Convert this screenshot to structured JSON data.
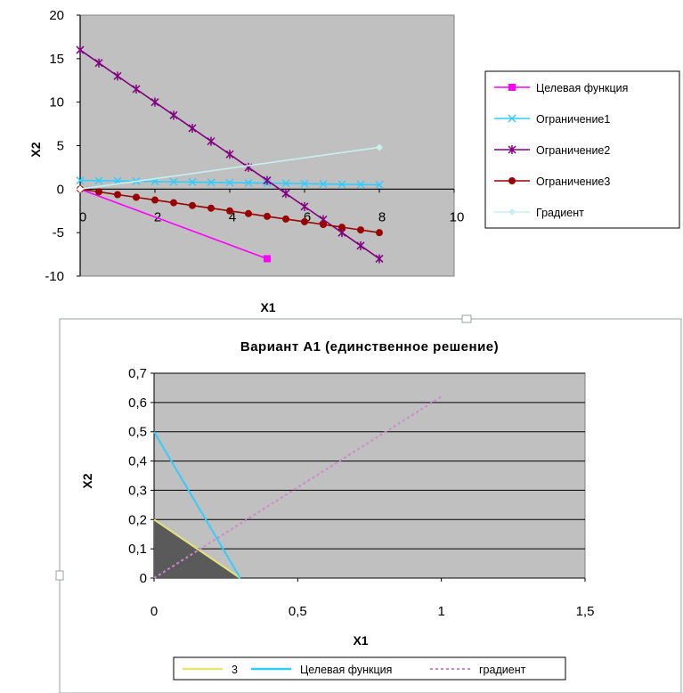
{
  "chart_data": [
    {
      "type": "line",
      "title": "",
      "xlabel": "X1",
      "ylabel": "X2",
      "xlim": [
        0,
        10
      ],
      "ylim": [
        -10,
        20
      ],
      "x_ticks": [
        "0",
        "2",
        "4",
        "6",
        "8",
        "10"
      ],
      "y_ticks": [
        "-10",
        "-5",
        "0",
        "5",
        "10",
        "15",
        "20"
      ],
      "legend": "right",
      "series": [
        {
          "name": "Целевая функция",
          "color": "#ff00ff",
          "marker": "square",
          "x": [
            0,
            5
          ],
          "y": [
            0,
            -8
          ],
          "markers_at": [
            1
          ]
        },
        {
          "name": "Ограничение1",
          "color": "#33ccff",
          "marker": "x",
          "x": [
            0,
            0.5,
            1,
            1.5,
            2,
            2.5,
            3,
            3.5,
            4,
            4.5,
            5,
            5.5,
            6,
            6.5,
            7,
            7.5,
            8
          ],
          "y": [
            1.0,
            0.97,
            0.94,
            0.91,
            0.88,
            0.84,
            0.81,
            0.78,
            0.75,
            0.72,
            0.69,
            0.66,
            0.63,
            0.59,
            0.56,
            0.53,
            0.5
          ]
        },
        {
          "name": "Ограничение2",
          "color": "#800080",
          "marker": "asterisk",
          "x": [
            0,
            0.5,
            1,
            1.5,
            2,
            2.5,
            3,
            3.5,
            4,
            4.5,
            5,
            5.5,
            6,
            6.5,
            7,
            7.5,
            8
          ],
          "y": [
            16,
            14.5,
            13,
            11.5,
            10,
            8.5,
            7,
            5.5,
            4,
            2.5,
            1,
            -0.5,
            -2,
            -3.5,
            -5,
            -6.5,
            -8
          ]
        },
        {
          "name": "Ограничение3",
          "color": "#990000",
          "marker": "circle",
          "x": [
            0,
            0.5,
            1,
            1.5,
            2,
            2.5,
            3,
            3.5,
            4,
            4.5,
            5,
            5.5,
            6,
            6.5,
            7,
            7.5,
            8
          ],
          "y": [
            0,
            -0.31,
            -0.63,
            -0.94,
            -1.25,
            -1.56,
            -1.88,
            -2.19,
            -2.5,
            -2.81,
            -3.13,
            -3.44,
            -3.75,
            -4.06,
            -4.38,
            -4.69,
            -5
          ]
        },
        {
          "name": "Градиент",
          "color": "#c8f0f0",
          "marker": "diamond",
          "x": [
            0,
            8
          ],
          "y": [
            0,
            4.8
          ],
          "markers_at": [
            0,
            1
          ]
        }
      ]
    },
    {
      "type": "area",
      "title": "Вариант А1 (единственное решение)",
      "xlabel": "X1",
      "ylabel": "X2",
      "xlim": [
        0,
        1.5
      ],
      "ylim": [
        0,
        0.7
      ],
      "x_ticks": [
        "0",
        "0,5",
        "1",
        "1,5"
      ],
      "y_ticks": [
        "0",
        "0,1",
        "0,2",
        "0,3",
        "0,4",
        "0,5",
        "0,6",
        "0,7"
      ],
      "grid": true,
      "legend": "bottom",
      "feasible_region": {
        "x": [
          0,
          0,
          0.3
        ],
        "y": [
          0,
          0.2,
          0
        ],
        "color": "#5a5a5a"
      },
      "series": [
        {
          "name": "3",
          "color": "#e6e673",
          "style": "solid",
          "x": [
            0,
            0.3
          ],
          "y": [
            0.2,
            0
          ]
        },
        {
          "name": "Целевая функция",
          "color": "#33ccff",
          "style": "solid",
          "x": [
            0,
            0.3
          ],
          "y": [
            0.5,
            0
          ]
        },
        {
          "name": "градиент",
          "color": "#cc88cc",
          "style": "dotted",
          "x": [
            0,
            1
          ],
          "y": [
            0,
            0.62
          ]
        }
      ]
    }
  ]
}
